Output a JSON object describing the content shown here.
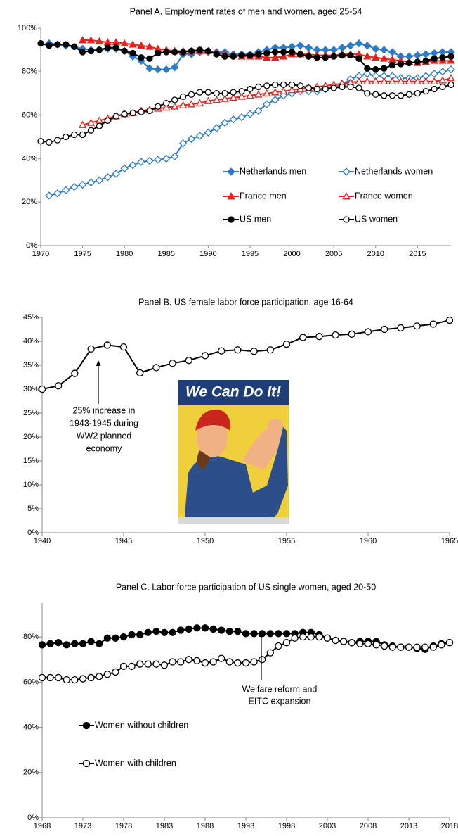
{
  "chart_data": [
    {
      "type": "line",
      "title": "Panel A. Employment rates of men and women, aged 25-54",
      "x": [
        1970,
        1971,
        1972,
        1973,
        1974,
        1975,
        1976,
        1977,
        1978,
        1979,
        1980,
        1981,
        1982,
        1983,
        1984,
        1985,
        1986,
        1987,
        1988,
        1989,
        1990,
        1991,
        1992,
        1993,
        1994,
        1995,
        1996,
        1997,
        1998,
        1999,
        2000,
        2001,
        2002,
        2003,
        2004,
        2005,
        2006,
        2007,
        2008,
        2009,
        2010,
        2011,
        2012,
        2013,
        2014,
        2015,
        2016,
        2017,
        2018,
        2019
      ],
      "xlim": [
        1970,
        2019
      ],
      "xticks": [
        1970,
        1975,
        1980,
        1985,
        1990,
        1995,
        2000,
        2005,
        2010,
        2015
      ],
      "ylim": [
        0,
        100
      ],
      "yticks": [
        {
          "value": 0,
          "label": "0%"
        },
        {
          "value": 20,
          "label": "20%"
        },
        {
          "value": 40,
          "label": "40%"
        },
        {
          "value": 60,
          "label": "60%"
        },
        {
          "value": 80,
          "label": "80%"
        },
        {
          "value": 100,
          "label": "100%"
        }
      ],
      "series": [
        {
          "name": "Netherlands men",
          "color": "#2a7bc8",
          "marker": "diamond",
          "filled": true,
          "values": [
            null,
            93,
            92.5,
            92,
            91.5,
            90.5,
            90,
            90,
            90.5,
            90.5,
            89.5,
            87,
            85,
            81.5,
            81,
            81,
            82,
            88,
            88,
            89,
            89,
            89,
            89,
            88,
            88,
            88,
            89,
            90,
            91,
            91,
            91.5,
            92,
            91,
            90,
            90,
            90,
            91,
            92,
            93,
            92,
            90.5,
            90,
            89,
            87,
            87,
            87.5,
            88,
            88.5,
            89,
            89
          ]
        },
        {
          "name": "Netherlands women",
          "color": "#2a7bc8",
          "marker": "diamond",
          "filled": false,
          "values": [
            null,
            23,
            24,
            25.5,
            27,
            28,
            29,
            30,
            31.5,
            33,
            35.5,
            37,
            38.5,
            39,
            39.5,
            40,
            41,
            47,
            49,
            50.5,
            52,
            54,
            56.5,
            58,
            59,
            60.5,
            62,
            65,
            67,
            69,
            70,
            71,
            71,
            71,
            72,
            73,
            74,
            76.5,
            78,
            79,
            78,
            78,
            78,
            77,
            77,
            77,
            78,
            79,
            80,
            81
          ]
        },
        {
          "name": "France men",
          "color": "#e8201a",
          "marker": "triangle",
          "filled": true,
          "values": [
            null,
            null,
            null,
            null,
            null,
            94.5,
            94.5,
            94,
            93.5,
            93.5,
            93,
            92.5,
            92,
            91.5,
            90.5,
            90,
            89.5,
            89.5,
            89.5,
            89.5,
            89.5,
            88.5,
            88,
            87.5,
            87,
            87,
            87,
            86.5,
            86.5,
            87,
            88,
            88,
            88,
            87.5,
            87.5,
            87.5,
            88,
            88,
            88,
            87,
            86.5,
            86,
            85.5,
            85,
            84.5,
            84,
            84.5,
            85,
            85,
            85
          ]
        },
        {
          "name": "France women",
          "color": "#e8201a",
          "marker": "triangle",
          "filled": false,
          "values": [
            null,
            null,
            null,
            null,
            null,
            55.5,
            56.5,
            57.5,
            58.5,
            59.5,
            60.5,
            61,
            62,
            62.5,
            63,
            63.5,
            64,
            64.5,
            65,
            65.5,
            66.5,
            67,
            67.5,
            68,
            68.5,
            69,
            69.5,
            70,
            70.5,
            71,
            71.5,
            72,
            72.5,
            73,
            73.5,
            74,
            74.5,
            75,
            75.5,
            75.5,
            75.5,
            75.5,
            75.5,
            75.5,
            75.5,
            75.5,
            75.5,
            75.5,
            76,
            77
          ]
        },
        {
          "name": "US men",
          "color": "#000000",
          "marker": "circle",
          "filled": true,
          "values": [
            93,
            92,
            92.5,
            92.5,
            91.5,
            89,
            89.5,
            90,
            91,
            91,
            89.5,
            88.5,
            86.5,
            86,
            88.5,
            89,
            89,
            89,
            89.5,
            90,
            89.5,
            88,
            87,
            87,
            87.5,
            87.5,
            88,
            88.5,
            89,
            89,
            89,
            88,
            87,
            86.5,
            86.5,
            87,
            87.5,
            87.5,
            86,
            81.5,
            81,
            81.5,
            83,
            83.5,
            84,
            84.5,
            85,
            86,
            86.5,
            87
          ]
        },
        {
          "name": "US women",
          "color": "#000000",
          "marker": "circle",
          "filled": false,
          "values": [
            48,
            47.5,
            48.5,
            50,
            51,
            51,
            53,
            55,
            57.5,
            59.5,
            60.5,
            61,
            61.5,
            62,
            64,
            65.5,
            67,
            68.5,
            69.5,
            70.5,
            70.5,
            70,
            70,
            70.5,
            71,
            72,
            73,
            73.5,
            74,
            74,
            74,
            73.5,
            72.5,
            72,
            72,
            72.5,
            73,
            73,
            72.5,
            70,
            69.5,
            69,
            69,
            69,
            69.5,
            70,
            71,
            72,
            73,
            74
          ]
        }
      ]
    },
    {
      "type": "line",
      "title": "Panel B. US female labor force participation, age 16-64",
      "x": [
        1940,
        1941,
        1942,
        1943,
        1944,
        1945,
        1946,
        1947,
        1948,
        1949,
        1950,
        1951,
        1952,
        1953,
        1954,
        1955,
        1956,
        1957,
        1958,
        1959,
        1960,
        1961,
        1962,
        1963,
        1964,
        1965
      ],
      "xlim": [
        1940,
        1965
      ],
      "xticks": [
        1940,
        1945,
        1950,
        1955,
        1960,
        1965
      ],
      "ylim": [
        0,
        45
      ],
      "yticks": [
        {
          "value": 0,
          "label": "0%"
        },
        {
          "value": 5,
          "label": "5%"
        },
        {
          "value": 10,
          "label": "10%"
        },
        {
          "value": 15,
          "label": "15%"
        },
        {
          "value": 20,
          "label": "20%"
        },
        {
          "value": 25,
          "label": "25%"
        },
        {
          "value": 30,
          "label": "30%"
        },
        {
          "value": 35,
          "label": "35%"
        },
        {
          "value": 40,
          "label": "40%"
        },
        {
          "value": 45,
          "label": "45%"
        }
      ],
      "series": [
        {
          "color": "#000000",
          "marker": "circle",
          "filled": false,
          "values": [
            30,
            30.7,
            33.3,
            38.4,
            39.2,
            38.8,
            33.4,
            34.5,
            35.4,
            36,
            37,
            38,
            38.2,
            37.9,
            38.2,
            39.4,
            40.8,
            41,
            41.3,
            41.5,
            42,
            42.5,
            42.8,
            43.2,
            43.6,
            44.4
          ]
        }
      ],
      "annotation": [
        "25% increase in",
        "1943-1945 during",
        "WW2 planned",
        "economy"
      ],
      "poster_text": "We Can Do It!"
    },
    {
      "type": "line",
      "title": "Panel C. Labor force participation of US single women, aged 20-50",
      "x": [
        1968,
        1969,
        1970,
        1971,
        1972,
        1973,
        1974,
        1975,
        1976,
        1977,
        1978,
        1979,
        1980,
        1981,
        1982,
        1983,
        1984,
        1985,
        1986,
        1987,
        1988,
        1989,
        1990,
        1991,
        1992,
        1993,
        1994,
        1995,
        1996,
        1997,
        1998,
        1999,
        2000,
        2001,
        2002,
        2003,
        2004,
        2005,
        2006,
        2007,
        2008,
        2009,
        2010,
        2011,
        2012,
        2013,
        2014,
        2015,
        2016,
        2017,
        2018
      ],
      "xlim": [
        1968,
        2018
      ],
      "xticks": [
        1968,
        1973,
        1978,
        1983,
        1988,
        1993,
        1998,
        2003,
        2008,
        2013,
        2018
      ],
      "ylim": [
        0,
        95
      ],
      "yticks": [
        {
          "value": 0,
          "label": "0%"
        },
        {
          "value": 20,
          "label": "20%"
        },
        {
          "value": 40,
          "label": "40%"
        },
        {
          "value": 60,
          "label": "60%"
        },
        {
          "value": 80,
          "label": "80%"
        }
      ],
      "series": [
        {
          "name": "Women without children",
          "color": "#000000",
          "marker": "circle",
          "filled": true,
          "values": [
            76.5,
            77,
            77.5,
            76.5,
            77,
            77,
            78,
            77,
            79.5,
            79.5,
            80,
            81,
            81,
            82,
            82.5,
            82,
            82,
            83,
            83.5,
            84,
            84,
            83.5,
            83,
            82.5,
            82.5,
            81.5,
            81.5,
            81.5,
            81.5,
            81.5,
            81.5,
            81.5,
            82,
            82,
            81,
            79.5,
            78.5,
            78,
            77.5,
            78,
            78,
            78,
            76.5,
            76,
            75.5,
            75.5,
            75,
            74.5,
            76,
            77,
            77.5
          ]
        },
        {
          "name": "Women with children",
          "color": "#000000",
          "marker": "circle",
          "filled": false,
          "values": [
            62,
            62,
            62,
            61,
            61,
            61.5,
            62,
            62.5,
            63.5,
            64.5,
            67,
            67,
            68,
            68,
            68,
            67.5,
            69,
            69,
            70,
            69.5,
            68.5,
            69,
            70.5,
            69,
            68.5,
            68.5,
            69,
            70,
            73,
            76,
            77.5,
            79.5,
            80,
            80,
            80,
            79.5,
            78.5,
            78,
            77.5,
            77,
            77,
            76.5,
            76,
            75.5,
            75.5,
            75.5,
            75.5,
            75.5,
            75.5,
            76.5,
            77.5
          ]
        }
      ],
      "annotation": [
        "Welfare reform and",
        "EITC expansion"
      ]
    }
  ]
}
